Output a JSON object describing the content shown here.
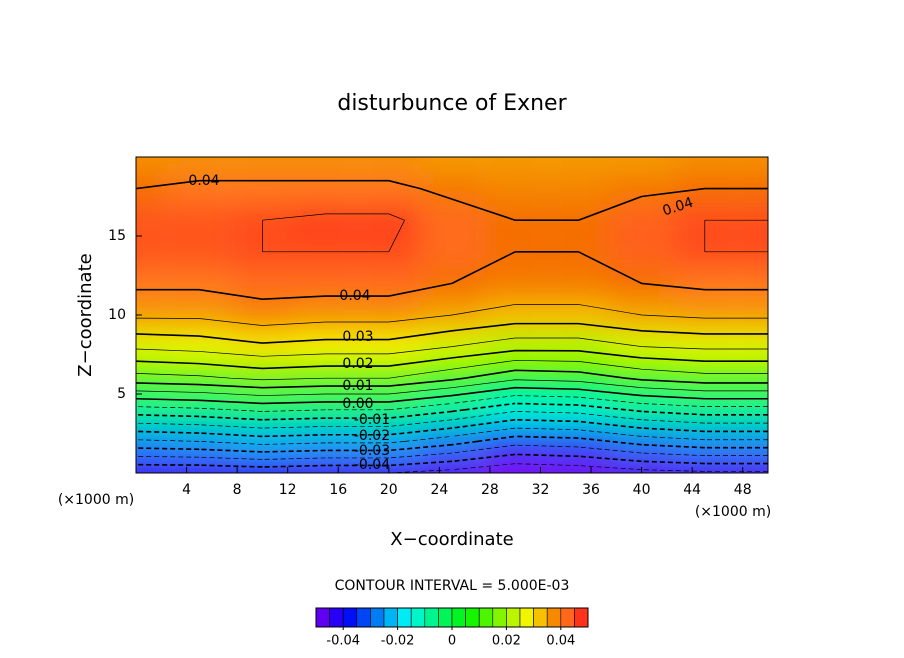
{
  "chart_data": {
    "type": "contour",
    "title": "disturbunce of Exner",
    "x_label": "X−coordinate",
    "y_label": "Z−coordinate",
    "x_unit": "(×1000 m)",
    "xlim": [
      0,
      50
    ],
    "ylim": [
      0,
      20
    ],
    "xticks": [
      4,
      8,
      12,
      16,
      20,
      24,
      28,
      32,
      36,
      40,
      44,
      48
    ],
    "yticks": [
      5,
      10,
      15
    ],
    "x": [
      0,
      5,
      10,
      15,
      20,
      25,
      30,
      35,
      40,
      45,
      50
    ],
    "y": [
      0,
      2,
      4,
      6,
      8,
      10,
      12,
      14,
      16,
      18,
      20
    ],
    "z": [
      [
        -0.045,
        -0.045,
        -0.044,
        -0.045,
        -0.045,
        -0.047,
        -0.05,
        -0.049,
        -0.047,
        -0.046,
        -0.046
      ],
      [
        -0.026,
        -0.025,
        -0.023,
        -0.024,
        -0.024,
        -0.028,
        -0.033,
        -0.032,
        -0.028,
        -0.026,
        -0.026
      ],
      [
        -0.007,
        -0.006,
        -0.004,
        -0.005,
        -0.005,
        -0.009,
        -0.014,
        -0.013,
        -0.009,
        -0.007,
        -0.007
      ],
      [
        0.013,
        0.014,
        0.016,
        0.015,
        0.015,
        0.011,
        0.006,
        0.007,
        0.011,
        0.013,
        0.013
      ],
      [
        0.026,
        0.027,
        0.029,
        0.028,
        0.028,
        0.025,
        0.022,
        0.022,
        0.025,
        0.026,
        0.026
      ],
      [
        0.036,
        0.036,
        0.038,
        0.037,
        0.037,
        0.035,
        0.033,
        0.033,
        0.035,
        0.036,
        0.036
      ],
      [
        0.041,
        0.041,
        0.042,
        0.042,
        0.042,
        0.04,
        0.039,
        0.039,
        0.04,
        0.041,
        0.041
      ],
      [
        0.044,
        0.044,
        0.045,
        0.045,
        0.045,
        0.042,
        0.04,
        0.04,
        0.043,
        0.045,
        0.045
      ],
      [
        0.044,
        0.044,
        0.045,
        0.046,
        0.046,
        0.042,
        0.04,
        0.04,
        0.043,
        0.045,
        0.045
      ],
      [
        0.04,
        0.041,
        0.041,
        0.041,
        0.041,
        0.039,
        0.038,
        0.038,
        0.039,
        0.04,
        0.04
      ],
      [
        0.037,
        0.037,
        0.037,
        0.037,
        0.037,
        0.036,
        0.036,
        0.036,
        0.036,
        0.037,
        0.037
      ]
    ],
    "contour_levels": [
      -0.05,
      -0.045,
      -0.04,
      -0.035,
      -0.03,
      -0.025,
      -0.02,
      -0.015,
      -0.01,
      -0.005,
      0,
      0.005,
      0.01,
      0.015,
      0.02,
      0.025,
      0.03,
      0.035,
      0.04,
      0.045,
      0.05
    ],
    "contour_labels": [
      {
        "value": 0.04,
        "label": "0.04"
      },
      {
        "value": 0.04,
        "label": "0.04"
      },
      {
        "value": 0.04,
        "label": "0.04"
      },
      {
        "value": 0.03,
        "label": "0.03"
      },
      {
        "value": 0.02,
        "label": "0.02"
      },
      {
        "value": 0.01,
        "label": "0.01"
      },
      {
        "value": 0,
        "label": "0.00"
      },
      {
        "value": -0.01,
        "label": "-0.01"
      },
      {
        "value": -0.02,
        "label": "-0.02"
      },
      {
        "value": -0.03,
        "label": "-0.03"
      },
      {
        "value": -0.04,
        "label": "-0.04"
      }
    ],
    "contour_interval_text": "CONTOUR INTERVAL = 5.000E-03",
    "colorbar_ticks": [
      -0.04,
      -0.02,
      0,
      0.02,
      0.04
    ]
  }
}
